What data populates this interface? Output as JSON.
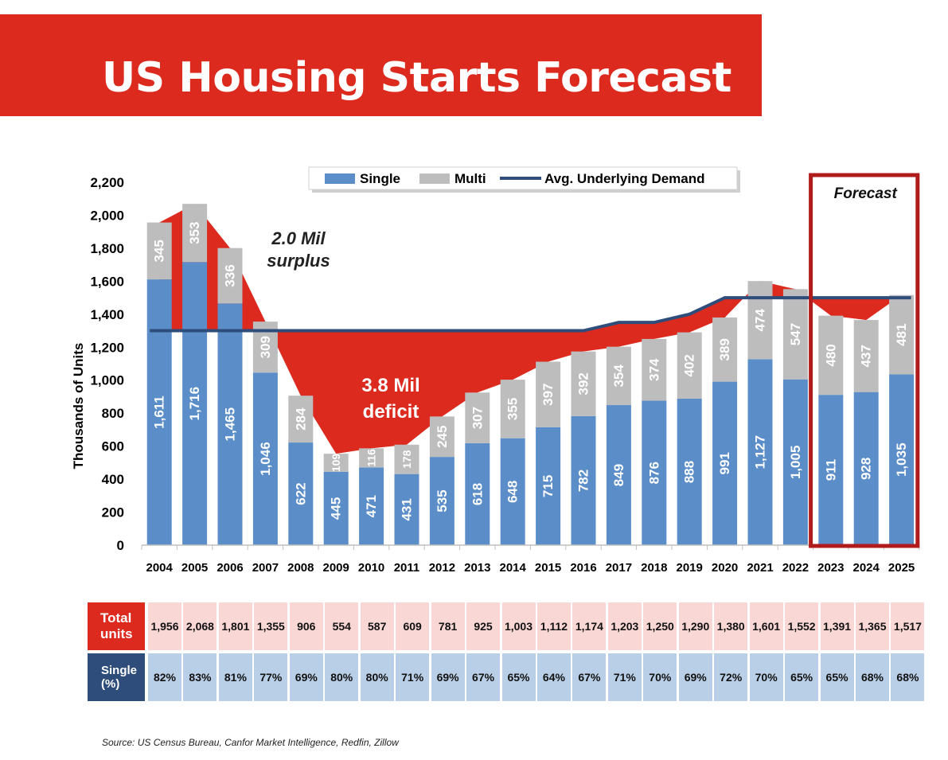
{
  "header": {
    "title": "US Housing Starts Forecast"
  },
  "chart_data": {
    "type": "bar",
    "stacked": true,
    "categories": [
      "2004",
      "2005",
      "2006",
      "2007",
      "2008",
      "2009",
      "2010",
      "2011",
      "2012",
      "2013",
      "2014",
      "2015",
      "2016",
      "2017",
      "2018",
      "2019",
      "2020",
      "2021",
      "2022",
      "2023",
      "2024",
      "2025"
    ],
    "series": [
      {
        "name": "Single",
        "color": "#5b8ec9",
        "values": [
          1611,
          1716,
          1465,
          1046,
          622,
          445,
          471,
          431,
          535,
          618,
          648,
          715,
          782,
          849,
          876,
          888,
          991,
          1127,
          1005,
          911,
          928,
          1035
        ],
        "labels": [
          "1,611",
          "1,716",
          "1,465",
          "1,046",
          "622",
          "445",
          "471",
          "431",
          "535",
          "618",
          "648",
          "715",
          "782",
          "849",
          "876",
          "888",
          "991",
          "1,127",
          "1,005",
          "911",
          "928",
          "1,035"
        ]
      },
      {
        "name": "Multi",
        "color": "#bdbdbd",
        "values": [
          345,
          353,
          336,
          309,
          284,
          109,
          116,
          178,
          245,
          307,
          355,
          397,
          392,
          354,
          374,
          402,
          389,
          474,
          547,
          480,
          437,
          481
        ],
        "labels": [
          "345",
          "353",
          "336",
          "309",
          "284",
          "109",
          "116",
          "178",
          "245",
          "307",
          "355",
          "397",
          "392",
          "354",
          "374",
          "402",
          "389",
          "474",
          "547",
          "480",
          "437",
          "481"
        ]
      }
    ],
    "line": {
      "name": "Avg. Underlying Demand",
      "color": "#2e4d7b",
      "values": [
        1300,
        1300,
        1300,
        1300,
        1300,
        1300,
        1300,
        1300,
        1300,
        1300,
        1300,
        1300,
        1300,
        1350,
        1350,
        1400,
        1500,
        1500,
        1500,
        1500,
        1500,
        1500
      ]
    },
    "ylabel": "Thousands of Units",
    "ylim": [
      0,
      2200
    ],
    "yticks": [
      "0",
      "200",
      "400",
      "600",
      "800",
      "1,000",
      "1,200",
      "1,400",
      "1,600",
      "1,800",
      "2,000",
      "2,200"
    ],
    "grid": false,
    "legend": "top-center",
    "fill_color": "#dd2a1f",
    "annotations": {
      "surplus_line1": "2.0 Mil",
      "surplus_line2": "surplus",
      "deficit_line1": "3.8 Mil",
      "deficit_line2": "deficit",
      "forecast": "Forecast"
    },
    "forecast_years": [
      "2023",
      "2024",
      "2025"
    ]
  },
  "table": {
    "rows": [
      {
        "label_lines": [
          "Total",
          "units"
        ],
        "header_color": "#dd2a1f",
        "cell_color": "#f8d7d5",
        "values": [
          "1,956",
          "2,068",
          "1,801",
          "1,355",
          "906",
          "554",
          "587",
          "609",
          "781",
          "925",
          "1,003",
          "1,112",
          "1,174",
          "1,203",
          "1,250",
          "1,290",
          "1,380",
          "1,601",
          "1,552",
          "1,391",
          "1,365",
          "1,517"
        ]
      },
      {
        "label_lines": [
          "Single",
          "(%)"
        ],
        "header_color": "#2e4d7b",
        "cell_color": "#b9cfe7",
        "values": [
          "82%",
          "83%",
          "81%",
          "77%",
          "69%",
          "80%",
          "80%",
          "71%",
          "69%",
          "67%",
          "65%",
          "64%",
          "67%",
          "71%",
          "70%",
          "69%",
          "72%",
          "70%",
          "65%",
          "65%",
          "68%",
          "68%"
        ]
      }
    ]
  },
  "source": "Source: US Census Bureau, Canfor Market Intelligence, Redfin, Zillow"
}
